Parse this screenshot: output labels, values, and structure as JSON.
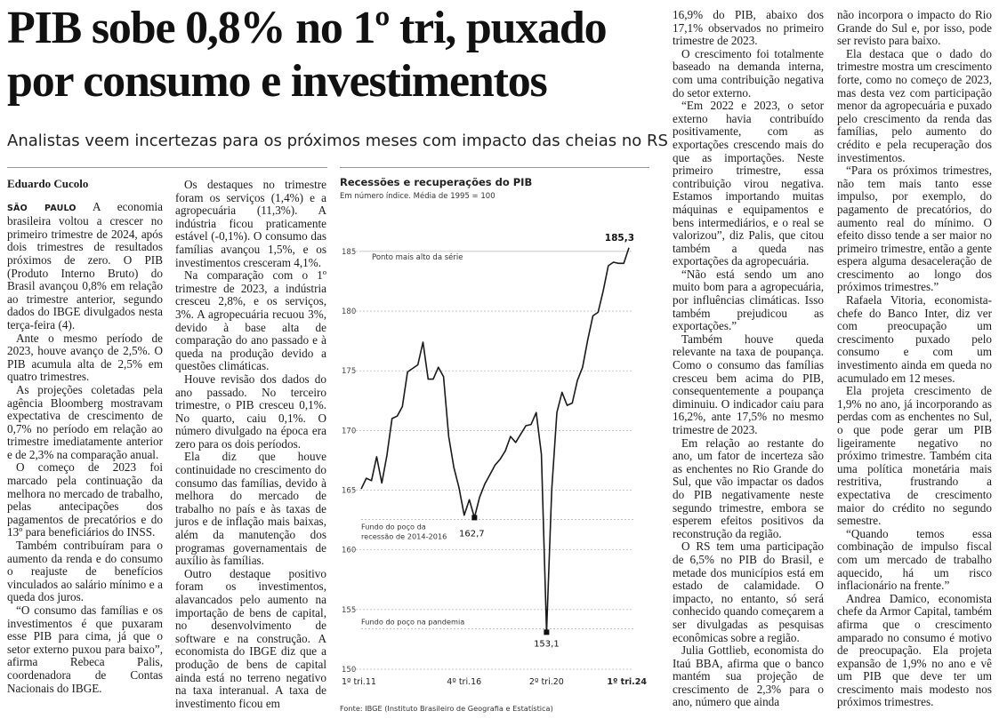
{
  "article": {
    "headline_line1": "PIB sobe 0,8% no 1º tri, puxado",
    "headline_line2": "por consumo e investimentos",
    "subheadline": "Analistas veem incertezas para os próximos meses com impacto das cheias no RS",
    "byline": "Eduardo Cucolo",
    "dateline": "SÃO PAULO",
    "col1": [
      " A economia brasileira voltou a crescer no primeiro trimestre de 2024, após dois trimestres de resultados próximos de zero. O PIB (Produto Interno Bruto) do Brasil avançou 0,8% em relação ao trimestre anterior, segundo dados do IBGE divulgados nesta terça-feira (4).",
      "Ante o mesmo período de 2023, houve avanço de 2,5%. O PIB acumula alta de 2,5% em quatro trimestres.",
      "As projeções coletadas pela agência Bloomberg mostravam expectativa de crescimento de 0,7% no período em relação ao trimestre imediatamente anterior e de 2,3% na comparação anual.",
      "O começo de 2023 foi marcado pela continuação da melhora no mercado de trabalho, pelas antecipações dos pagamentos de precatórios e do 13º para beneficiários do INSS.",
      "Também contribuíram para o aumento da renda e do consumo o reajuste de benefícios vinculados ao salário mínimo e a queda dos juros.",
      "“O consumo das famílias e os investimentos é que puxaram esse PIB para cima, já que o setor externo puxou para baixo”, afirma Rebeca Palis, coordenadora de Contas Nacionais do IBGE."
    ],
    "col2": [
      "Os destaques no trimestre foram os serviços (1,4%) e a agropecuária (11,3%). A indústria ficou praticamente estável (-0,1%). O consumo das famílias avançou 1,5%, e os investimentos cresceram 4,1%.",
      "Na comparação com o 1º trimestre de 2023, a indústria cresceu 2,8%, e os serviços, 3%. A agropecuária recuou 3%, devido à base alta de comparação do ano passado e à queda na produção devido a questões climáticas.",
      "Houve revisão dos dados do ano passado. No terceiro trimestre, o PIB cresceu 0,1%. No quarto, caiu 0,1%. O número divulgado na época era zero para os dois períodos.",
      "Ela diz que houve continuidade no crescimento do consumo das famílias, devido à melhora do mercado de trabalho no país e às taxas de juros e de inflação mais baixas, além da manutenção dos programas governamentais de auxílio às famílias.",
      "Outro destaque positivo foram os investimentos, alavancados pelo aumento na importação de bens de capital, no desenvolvimento de software e na construção. A economista do IBGE diz que a produção de bens de capital ainda está no terreno negativo na taxa interanual. A taxa de investimento ficou em"
    ],
    "col3": [
      "16,9% do PIB, abaixo dos 17,1% observados no primeiro trimestre de 2023.",
      "O crescimento foi totalmente baseado na demanda interna, com uma contribuição negativa do setor externo.",
      "“Em 2022 e 2023, o setor externo havia contribuído positivamente, com as exportações crescendo mais do que as importações. Neste primeiro trimestre, essa contribuição virou negativa. Estamos importando muitas máquinas e equipamentos e bens intermediários, e o real se valorizou”, diz Palis, que citou também a queda nas exportações da agropecuária.",
      "“Não está sendo um ano muito bom para a agropecuária, por influências climáticas. Isso também prejudicou as exportações.”",
      "Também houve queda relevante na taxa de poupança. Como o consumo das famílias cresceu bem acima do PIB, consequentemente a poupança diminuiu. O indicador caiu para 16,2%, ante 17,5% no mesmo trimestre de 2023.",
      "Em relação ao restante do ano, um fator de incerteza são as enchentes no Rio Grande do Sul, que vão impactar os dados do PIB negativamente neste segundo trimestre, embora se esperem efeitos positivos da reconstrução da região.",
      "O RS tem uma participação de 6,5% no PIB do Brasil, e metade dos municípios está em estado de calamidade. O impacto, no entanto, só será conhecido quando começarem a ser divulgadas as pesquisas econômicas sobre a região.",
      "Julia Gottlieb, economista do Itaú BBA, afirma que o banco mantém sua projeção de crescimento de 2,3% para o ano, número que ainda"
    ],
    "col4": [
      "não incorpora o impacto do Rio Grande do Sul e, por isso, pode ser revisto para baixo.",
      "Ela destaca que o dado do trimestre mostra um crescimento forte, como no começo de 2023, mas desta vez com participação menor da agropecuária e puxado pelo crescimento da renda das famílias, pelo aumento do crédito e pela recuperação dos investimentos.",
      "“Para os próximos trimestres, não tem mais tanto esse impulso, por exemplo, do pagamento de precatórios, do aumento real do mínimo. O efeito disso tende a ser maior no primeiro trimestre, então a gente espera alguma desaceleração de crescimento ao longo dos próximos trimestres.”",
      "Rafaela Vitoria, economista-chefe do Banco Inter, diz ver com preocupação um crescimento puxado pelo consumo e com um investimento ainda em queda no acumulado em 12 meses.",
      "Ela projeta crescimento de 1,9% no ano, já incorporando as perdas com as enchentes no Sul, o que pode gerar um PIB ligeiramente negativo no próximo trimestre. Também cita uma política monetária mais restritiva, frustrando a expectativa de crescimento maior do crédito no segundo semestre.",
      "“Quando temos essa combinação de impulso fiscal com um mercado de trabalho aquecido, há um risco inflacionário na frente.”",
      "Andrea Damico, economista chefe da Armor Capital, também afirma que o crescimento amparado no consumo é motivo de preocupação. Ela projeta expansão de 1,9% no ano e vê um PIB que deve ter um crescimento mais modesto nos próximos trimestres."
    ]
  },
  "chart_data": {
    "type": "line",
    "title": "Recessões e recuperações do PIB",
    "subtitle": "Em número índice. Média de 1995 = 100",
    "source": "Fonte: IBGE (Instituto Brasileiro de Geografia e Estatística)",
    "ylim": [
      150,
      187
    ],
    "yticks": [
      150,
      155,
      160,
      165,
      170,
      175,
      180,
      185
    ],
    "ytick_labels": [
      "150",
      "155",
      "160",
      "165",
      "170",
      "175",
      "180",
      "185"
    ],
    "xticks": [
      {
        "index": 0,
        "label": "1º tri.11",
        "bold": false
      },
      {
        "index": 20,
        "label": "4º tri.16",
        "bold": false
      },
      {
        "index": 36,
        "label": "2º tri.20",
        "bold": false
      },
      {
        "index": 52,
        "label": "1º tri.24",
        "bold": true
      }
    ],
    "values": [
      165.1,
      166.0,
      165.8,
      167.8,
      165.6,
      167.9,
      171.0,
      171.2,
      172.0,
      174.9,
      175.2,
      175.5,
      177.4,
      174.3,
      174.3,
      175.3,
      174.5,
      169.5,
      166.9,
      165.2,
      162.9,
      164.2,
      162.7,
      164.4,
      165.5,
      166.3,
      167.1,
      167.6,
      168.3,
      169.5,
      169.0,
      169.7,
      170.4,
      170.5,
      171.5,
      168.0,
      153.1,
      165.0,
      171.5,
      173.2,
      172.1,
      172.3,
      174.2,
      175.3,
      177.6,
      179.6,
      179.9,
      181.7,
      183.8,
      184.1,
      184.0,
      184.0,
      185.3
    ],
    "annotations": [
      {
        "index": 52,
        "value": 185.3,
        "label": "185,3",
        "line_label": "Ponto mais alto da série"
      },
      {
        "index": 22,
        "value": 162.7,
        "label": "162,7",
        "line_label_1": "Fundo do poço da",
        "line_label_2": "recessão de 2014-2016"
      },
      {
        "index": 36,
        "value": 153.1,
        "label": "153,1",
        "line_label": "Fundo do poço na pandemia"
      }
    ]
  }
}
